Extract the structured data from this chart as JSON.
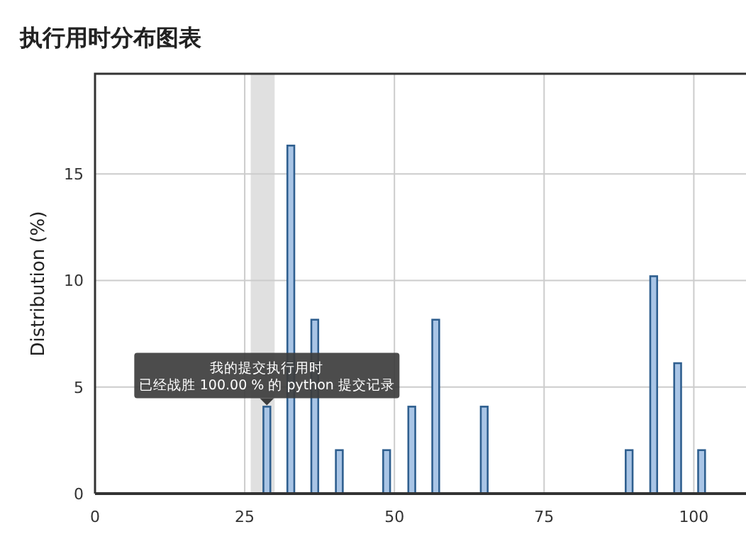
{
  "chart_data": {
    "type": "bar",
    "title": "执行用时分布图表",
    "ylabel": "Distribution (%)",
    "x": [
      28.7,
      32.7,
      36.7,
      40.8,
      48.7,
      52.9,
      56.9,
      65,
      89.2,
      93.3,
      97.3,
      101.3
    ],
    "values": [
      4.08,
      16.33,
      8.16,
      2.04,
      2.04,
      4.08,
      8.16,
      4.08,
      2.04,
      10.2,
      6.12,
      2.04
    ],
    "color": "#2f5f8f",
    "xlim": [
      0,
      109
    ],
    "ylim": [
      0,
      19.7
    ],
    "xticks": [
      0,
      25,
      50,
      75,
      100
    ],
    "yticks": [
      0,
      5,
      10,
      15
    ],
    "grid": true,
    "bands": [
      {
        "axis": "x",
        "from": 26,
        "to": 30,
        "color": "#e0e0e0"
      }
    ],
    "annotations": [
      {
        "text": "我的提交执行用时",
        "x": 28.7,
        "y": 4.08
      },
      "已经战胜 100.00 % 的 python 提交记录"
    ]
  }
}
